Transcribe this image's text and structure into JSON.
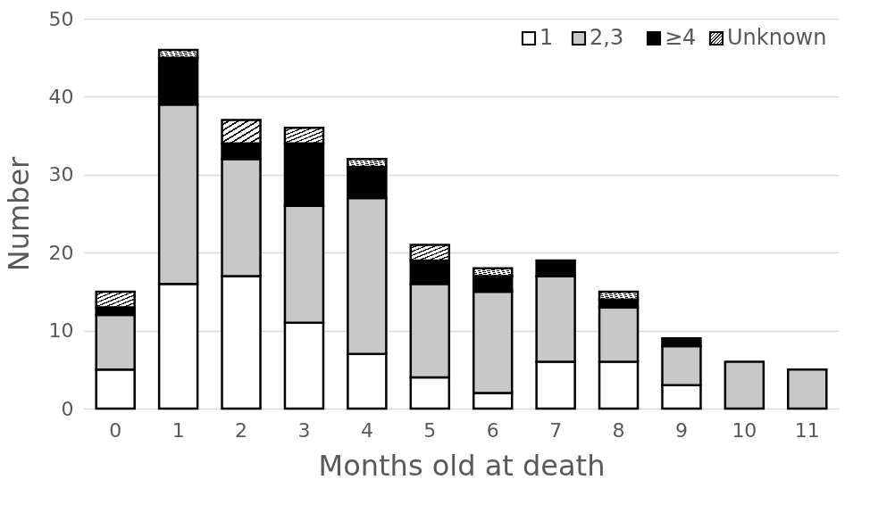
{
  "chart_data": {
    "type": "bar",
    "stacked": true,
    "xlabel": "Months old at death",
    "ylabel": "Number",
    "categories": [
      "0",
      "1",
      "2",
      "3",
      "4",
      "5",
      "6",
      "7",
      "8",
      "9",
      "10",
      "11"
    ],
    "series": [
      {
        "name": "1",
        "color": "#ffffff",
        "values": [
          5,
          16,
          17,
          11,
          7,
          4,
          2,
          6,
          6,
          3,
          0,
          0
        ]
      },
      {
        "name": "2,3",
        "color": "#c8c8c8",
        "values": [
          7,
          23,
          15,
          15,
          20,
          12,
          13,
          11,
          7,
          5,
          6,
          5
        ]
      },
      {
        "name": "≥4",
        "color": "#000000",
        "values": [
          1,
          6,
          2,
          8,
          4,
          3,
          2,
          2,
          1,
          1,
          0,
          0
        ]
      },
      {
        "name": "Unknown",
        "color": "#000000",
        "values": [
          2,
          1,
          3,
          2,
          1,
          2,
          1,
          0,
          1,
          0,
          0,
          0
        ]
      }
    ],
    "ylim": [
      0,
      50
    ],
    "yticks": [
      0,
      10,
      20,
      30,
      40,
      50
    ],
    "grid": "y",
    "legend": "top right"
  }
}
